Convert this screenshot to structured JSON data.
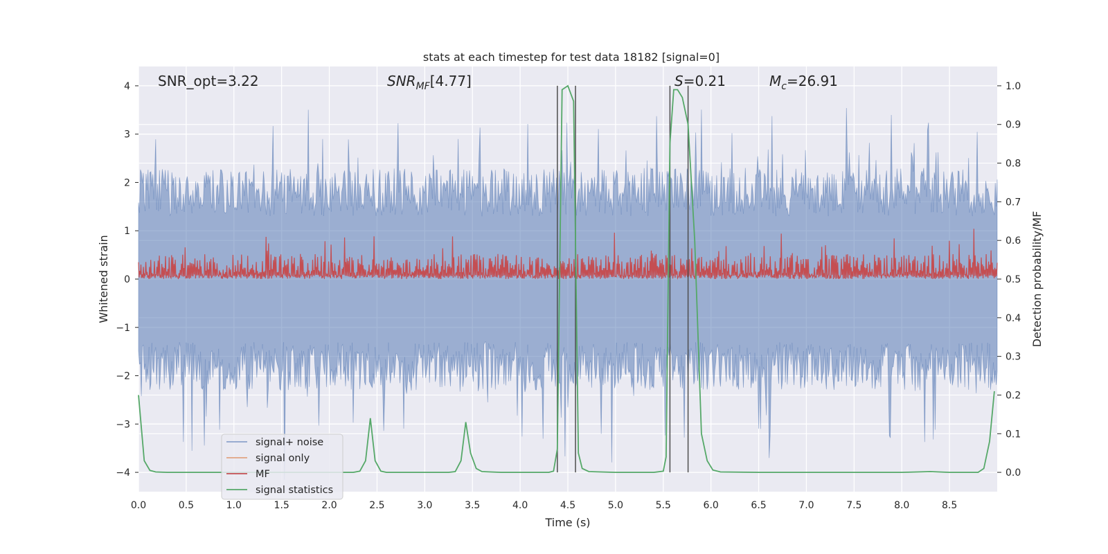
{
  "chart_data": {
    "type": "line",
    "title": "stats at each timestep for test data 18182 [signal=0]",
    "xlabel": "Time (s)",
    "ylabel_left": "Whitened strain",
    "ylabel_right": "Detection probability/MF",
    "xlim": [
      0.0,
      9.0
    ],
    "ylim_left": [
      -4.4,
      4.4
    ],
    "ylim_right": [
      -0.05,
      1.05
    ],
    "x_ticks": [
      "0.0",
      "0.5",
      "1.0",
      "1.5",
      "2.0",
      "2.5",
      "3.0",
      "3.5",
      "4.0",
      "4.5",
      "5.0",
      "5.5",
      "6.0",
      "6.5",
      "7.0",
      "7.5",
      "8.0",
      "8.5"
    ],
    "y_ticks_left": [
      "−4",
      "−3",
      "−2",
      "−1",
      "0",
      "1",
      "2",
      "3",
      "4"
    ],
    "y_ticks_right": [
      "0.0",
      "0.1",
      "0.2",
      "0.3",
      "0.4",
      "0.5",
      "0.6",
      "0.7",
      "0.8",
      "0.9",
      "1.0"
    ],
    "grid": true,
    "legend_position": "lower-left",
    "colors": {
      "background": "#eaeaf2",
      "grid": "#ffffff",
      "signal_noise": "#4c72b0",
      "signal_only": "#dd8452",
      "mf": "#c44e52",
      "signal_statistics": "#55a868",
      "vlines": "#4d4d4d"
    },
    "annotations": {
      "snr_opt": "SNR_opt=3.22",
      "snr_mf": "[4.77]",
      "s_value": "=0.21",
      "mc_value": "=26.91"
    },
    "series": [
      {
        "name": "signal+ noise",
        "axis": "left",
        "description_range": [
          -4.2,
          3.8
        ]
      },
      {
        "name": "signal only",
        "axis": "left",
        "values": []
      },
      {
        "name": "MF",
        "axis": "right",
        "range": [
          0.5,
          0.63
        ]
      },
      {
        "name": "signal statistics",
        "axis": "right",
        "x": [
          0.0,
          0.06,
          0.12,
          0.18,
          0.3,
          1.0,
          2.0,
          2.25,
          2.32,
          2.38,
          2.43,
          2.48,
          2.54,
          2.6,
          2.75,
          3.0,
          3.25,
          3.32,
          3.38,
          3.43,
          3.48,
          3.54,
          3.6,
          3.8,
          4.0,
          4.3,
          4.35,
          4.39,
          4.44,
          4.5,
          4.56,
          4.61,
          4.65,
          4.72,
          5.0,
          5.4,
          5.5,
          5.53,
          5.57,
          5.61,
          5.65,
          5.7,
          5.76,
          5.83,
          5.9,
          5.96,
          6.02,
          6.1,
          6.5,
          7.0,
          8.0,
          8.3,
          8.5,
          8.8,
          8.86,
          8.92,
          8.97
        ],
        "y": [
          0.2,
          0.03,
          0.005,
          0.001,
          0.0,
          0.0,
          0.0,
          0.0,
          0.003,
          0.03,
          0.14,
          0.03,
          0.003,
          0.0,
          0.0,
          0.0,
          0.0,
          0.002,
          0.03,
          0.13,
          0.05,
          0.01,
          0.002,
          0.0,
          0.0,
          0.0,
          0.003,
          0.06,
          0.99,
          1.0,
          0.96,
          0.05,
          0.01,
          0.002,
          0.0,
          0.0,
          0.003,
          0.04,
          0.85,
          0.99,
          0.99,
          0.97,
          0.9,
          0.6,
          0.1,
          0.03,
          0.006,
          0.001,
          0.0,
          0.0,
          0.0,
          0.002,
          0.0,
          0.0,
          0.01,
          0.08,
          0.21
        ]
      }
    ],
    "vertical_lines": [
      4.39,
      4.58,
      5.57,
      5.76
    ]
  }
}
